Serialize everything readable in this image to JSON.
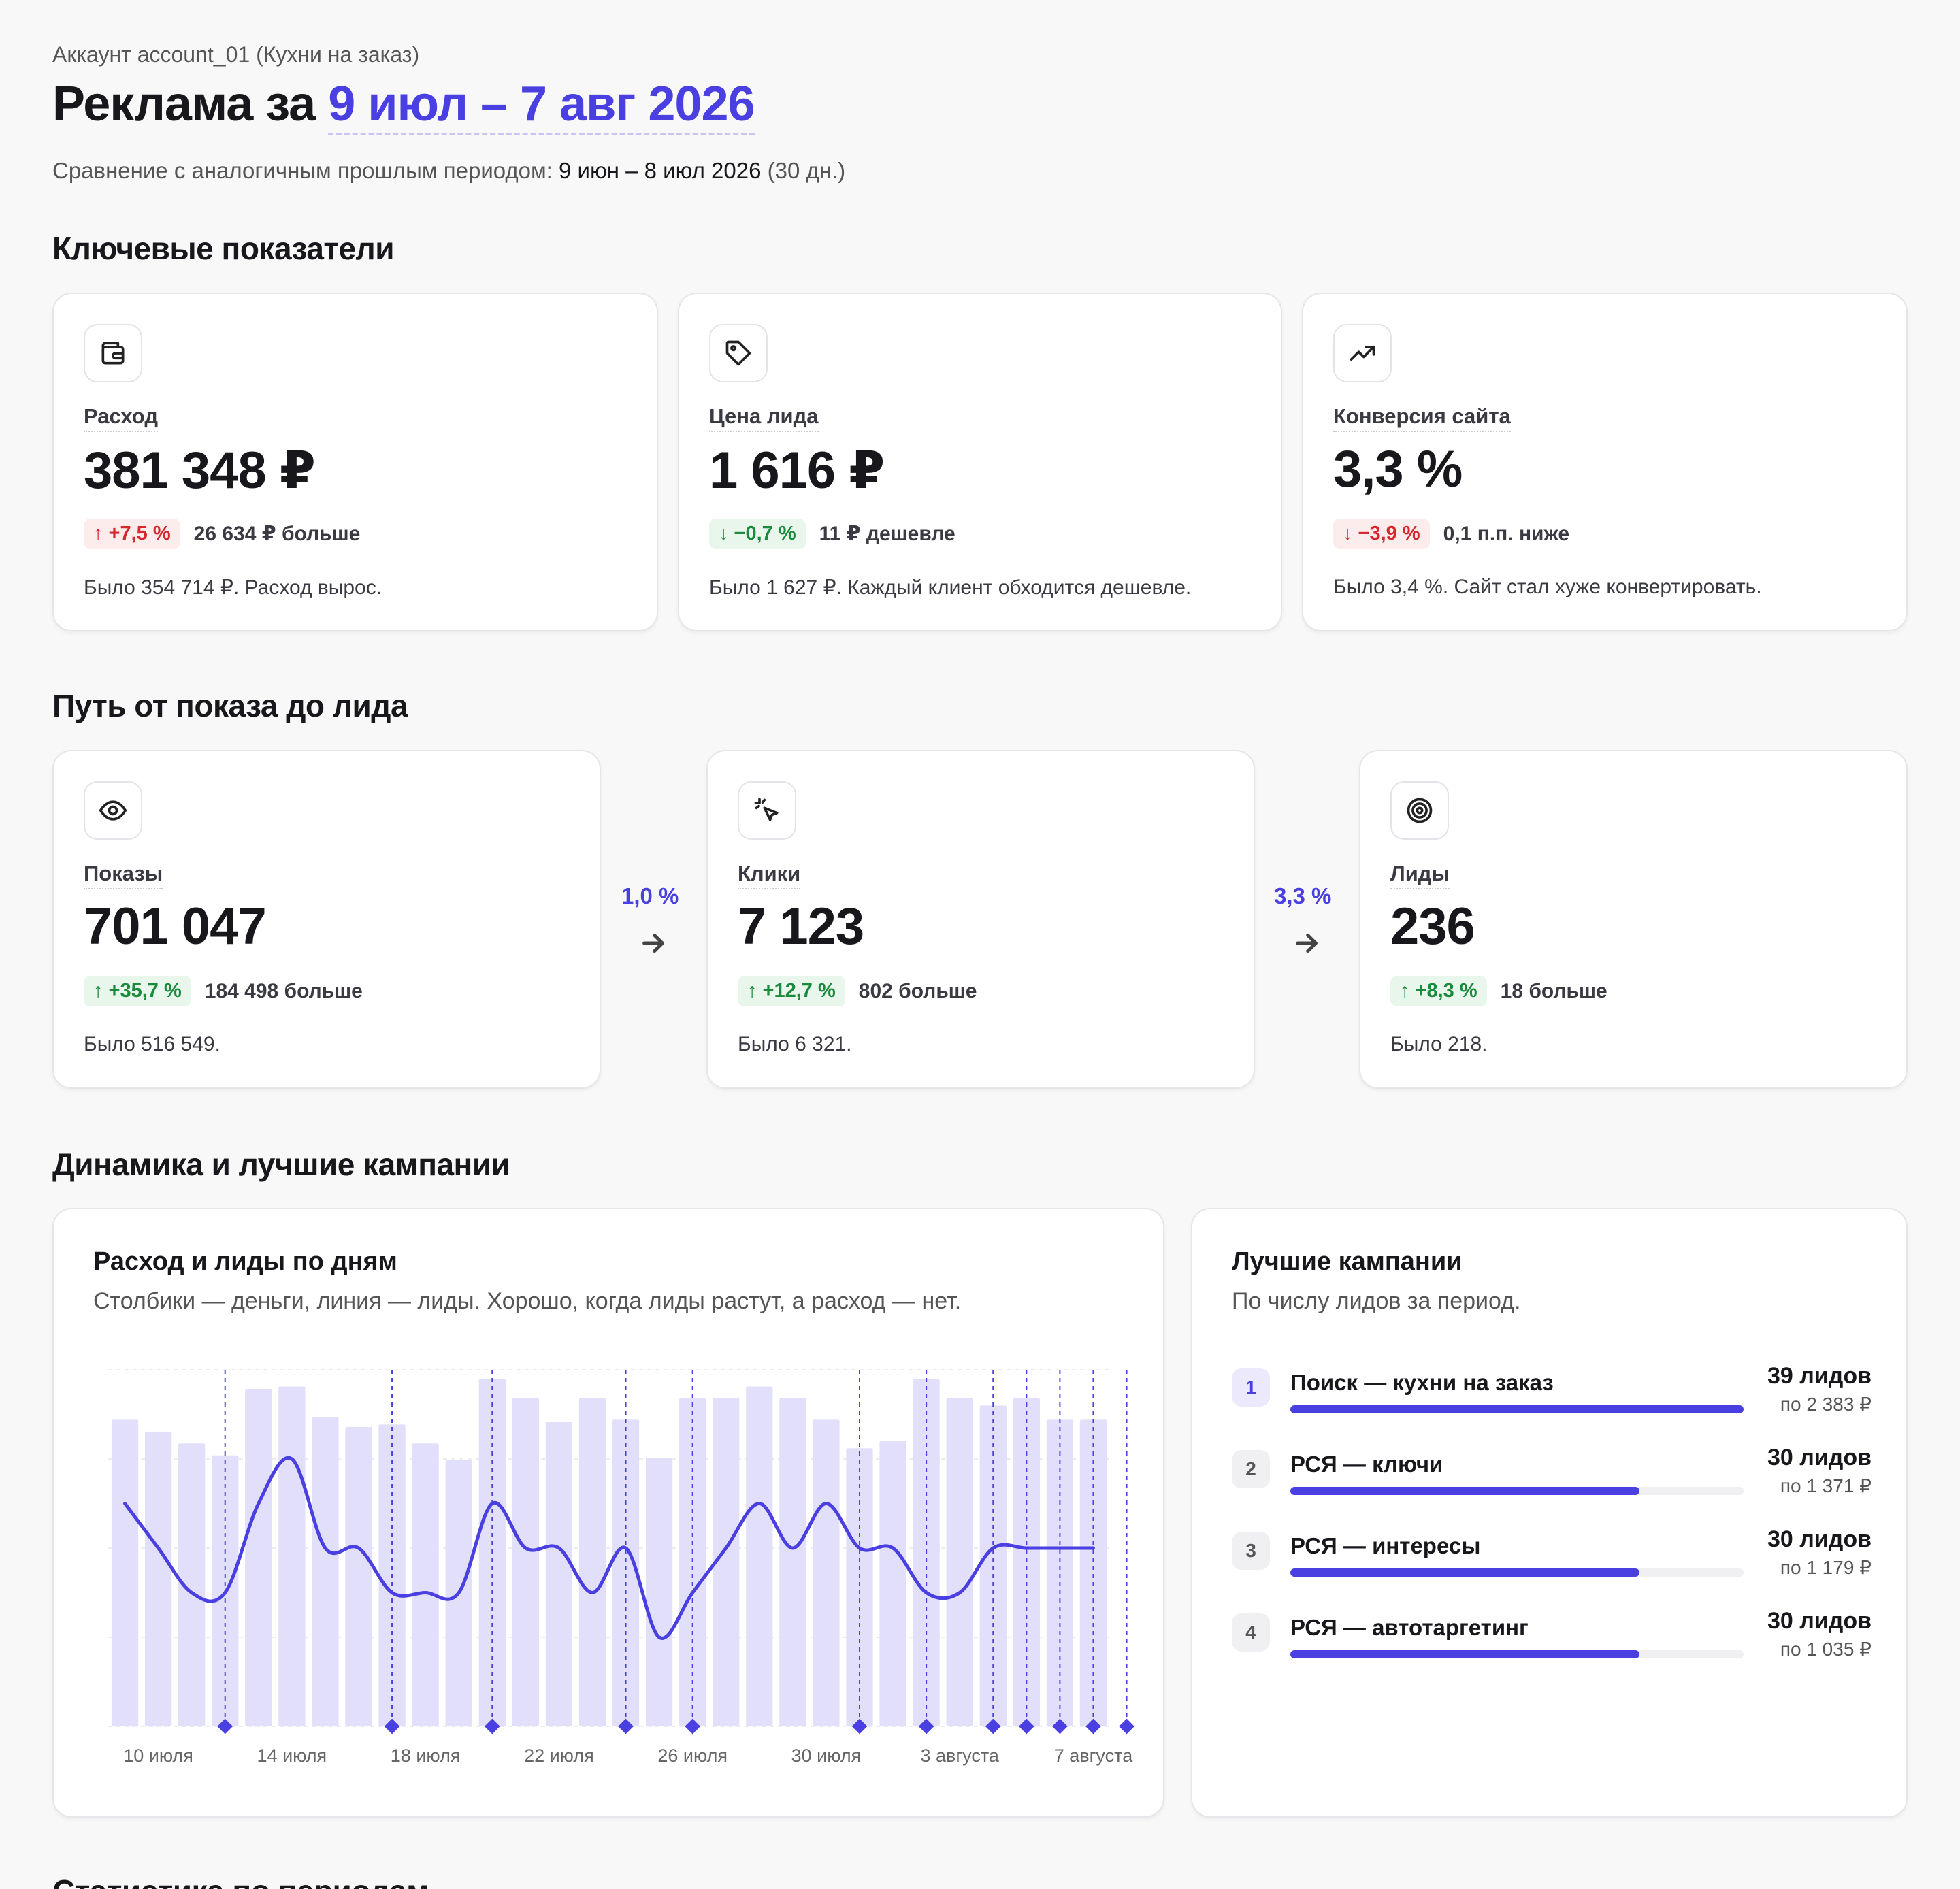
{
  "header": {
    "account": "Аккаунт account_01 (Кухни на заказ)",
    "title_prefix": "Реклама за ",
    "title_range": "9 июл – 7 авг 2026",
    "compare_prefix": "Сравнение с аналогичным прошлым периодом: ",
    "compare_dates": "9 июн – 8 июл 2026",
    "compare_suffix": " (30 дн.)"
  },
  "sections": {
    "key_metrics": "Ключевые показатели",
    "funnel": "Путь от показа до лида",
    "dynamics": "Динамика и лучшие кампании",
    "stats": "Статистика по периодам"
  },
  "kpis": [
    {
      "icon": "wallet-icon",
      "label": "Расход",
      "value": "381 348 ₽",
      "badge": "↑ +7,5 %",
      "badge_type": "bad",
      "delta": "26 634 ₽ больше",
      "was": "Было 354 714 ₽. Расход вырос."
    },
    {
      "icon": "tag-icon",
      "label": "Цена лида",
      "value": "1 616 ₽",
      "badge": "↓ −0,7 %",
      "badge_type": "good",
      "delta": "11 ₽ дешевле",
      "was": "Было 1 627 ₽. Каждый клиент обходится дешевле."
    },
    {
      "icon": "trending-up-icon",
      "label": "Конверсия сайта",
      "value": "3,3 %",
      "badge": "↓ −3,9 %",
      "badge_type": "bad",
      "delta": "0,1 п.п. ниже",
      "was": "Было 3,4 %. Сайт стал хуже конвертировать."
    }
  ],
  "funnel": {
    "steps": [
      {
        "icon": "eye-icon",
        "label": "Показы",
        "value": "701 047",
        "badge": "↑ +35,7 %",
        "badge_type": "good",
        "delta": "184 498 больше",
        "was": "Было 516 549."
      },
      {
        "icon": "cursor-click-icon",
        "label": "Клики",
        "value": "7 123",
        "badge": "↑ +12,7 %",
        "badge_type": "good",
        "delta": "802 больше",
        "was": "Было 6 321."
      },
      {
        "icon": "target-icon",
        "label": "Лиды",
        "value": "236",
        "badge": "↑ +8,3 %",
        "badge_type": "good",
        "delta": "18 больше",
        "was": "Было 218."
      }
    ],
    "rates": [
      "1,0 %",
      "3,3 %"
    ]
  },
  "chart_panel": {
    "title": "Расход и лиды по дням",
    "subtitle": "Столбики — деньги, линия — лиды. Хорошо, когда лиды растут, а расход — нет."
  },
  "chart_data": {
    "type": "bar",
    "x": [
      "9 июл",
      "10 июл",
      "11 июл",
      "12 июл",
      "13 июл",
      "14 июл",
      "15 июл",
      "16 июл",
      "17 июл",
      "18 июл",
      "19 июл",
      "20 июл",
      "21 июл",
      "22 июл",
      "23 июл",
      "24 июл",
      "25 июл",
      "26 июл",
      "27 июл",
      "28 июл",
      "29 июл",
      "30 июл",
      "31 июл",
      "1 авг",
      "2 авг",
      "3 авг",
      "4 авг",
      "5 авг",
      "6 авг",
      "7 авг"
    ],
    "tick_labels": [
      "10 июля",
      "14 июля",
      "18 июля",
      "22 июля",
      "26 июля",
      "30 июля",
      "3 августа",
      "7 августа"
    ],
    "series": [
      {
        "values": [
          12900,
          12400,
          11900,
          11400,
          14200,
          14300,
          13000,
          12600,
          12700,
          11900,
          11200,
          14600,
          13800,
          12800,
          13800,
          12900,
          11300,
          13800,
          13800,
          14300,
          13800,
          12900,
          11700,
          12000,
          14600,
          13800,
          13500,
          13800,
          12900,
          12900
        ]
      },
      {
        "values": [
          9,
          8,
          7,
          7,
          9,
          10,
          8,
          8,
          7,
          7,
          7,
          9,
          8,
          8,
          7,
          8,
          6,
          7,
          8,
          9,
          8,
          9,
          8,
          8,
          7,
          7,
          8,
          8,
          8,
          8
        ]
      }
    ],
    "markers": [
      "12 июл",
      "17 июл",
      "20 июл",
      "24 июл",
      "26 июл",
      "31 июл",
      "2 авг",
      "4 авг",
      "5 авг",
      "6 авг",
      "7 авг",
      "8 авг"
    ],
    "colors": {
      "bars": "#e1dffa",
      "line": "#4a3fe0",
      "markers": "#4a3fe0"
    }
  },
  "campaigns": {
    "title": "Лучшие кампании",
    "subtitle": "По числу лидов за период.",
    "items": [
      {
        "rank": "1",
        "name": "Поиск — кухни на заказ",
        "leads": "39 лидов",
        "cpl": "по 2 383 ₽",
        "share": 1.0
      },
      {
        "rank": "2",
        "name": "РСЯ — ключи",
        "leads": "30 лидов",
        "cpl": "по 1 371 ₽",
        "share": 0.77
      },
      {
        "rank": "3",
        "name": "РСЯ — интересы",
        "leads": "30 лидов",
        "cpl": "по 1 179 ₽",
        "share": 0.77
      },
      {
        "rank": "4",
        "name": "РСЯ — автотаргетинг",
        "leads": "30 лидов",
        "cpl": "по 1 035 ₽",
        "share": 0.77
      }
    ]
  }
}
